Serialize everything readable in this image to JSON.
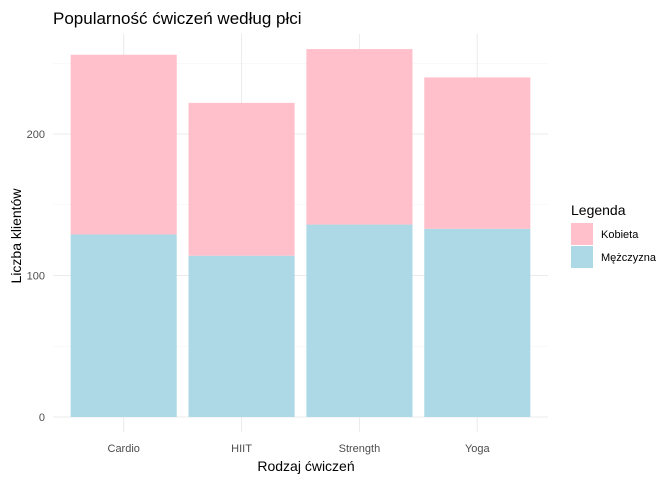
{
  "chart_data": {
    "type": "bar",
    "stacked": true,
    "title": "Popularność ćwiczeń według płci",
    "xlabel": "Rodzaj ćwiczeń",
    "ylabel": "Liczba klientów",
    "categories": [
      "Cardio",
      "HIIT",
      "Strength",
      "Yoga"
    ],
    "series": [
      {
        "name": "Mężczyzna",
        "values": [
          129,
          114,
          136,
          133
        ],
        "color": "#add8e6"
      },
      {
        "name": "Kobieta",
        "values": [
          127,
          108,
          124,
          107
        ],
        "color": "#ffc0cb"
      }
    ],
    "ylim": [
      0,
      270
    ],
    "yticks": [
      0,
      100,
      200
    ],
    "grid": true,
    "legend": {
      "title": "Legenda",
      "placement": "right",
      "order": [
        "Kobieta",
        "Mężczyzna"
      ]
    }
  }
}
